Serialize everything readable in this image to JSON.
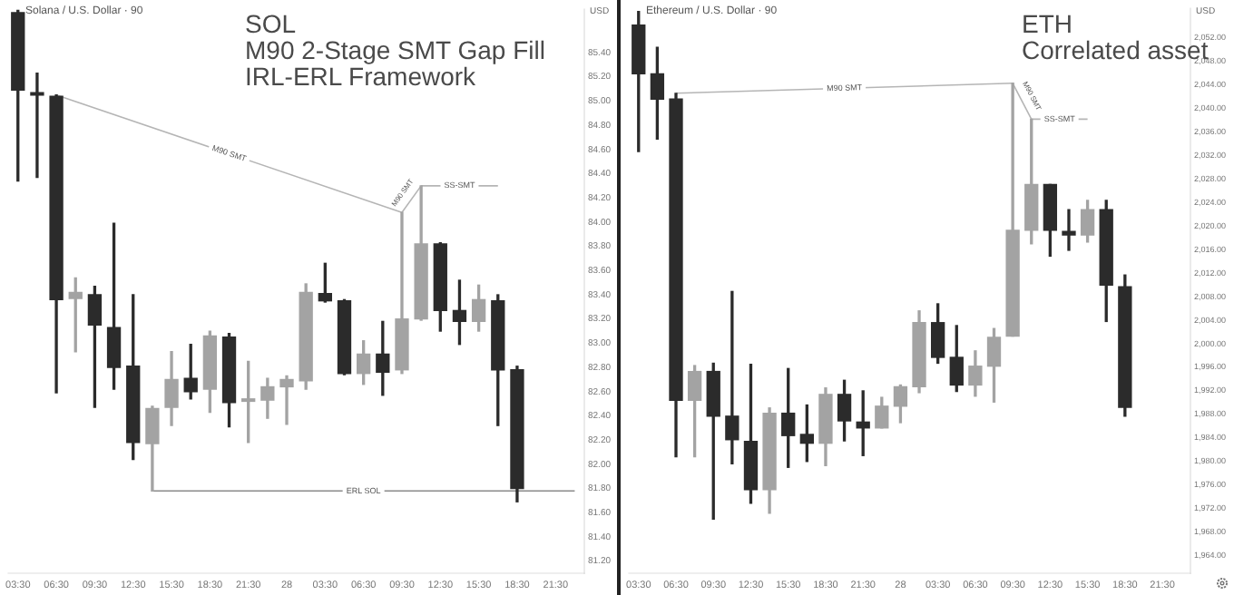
{
  "chart_data": [
    {
      "type": "candlestick",
      "title": "Solana / U.S. Dollar · 90",
      "ylabel": "USD",
      "annotations": [
        "SOL",
        "M90 2-Stage SMT Gap Fill",
        "IRL-ERL Framework"
      ],
      "categories": [
        "03:30",
        null,
        "06:30",
        null,
        "09:30",
        null,
        "12:30",
        null,
        "15:30",
        null,
        "18:30",
        null,
        "21:30",
        null,
        "28",
        null,
        "03:30",
        null,
        "06:30",
        null,
        "09:30",
        null,
        "12:30",
        null,
        "15:30",
        null,
        "18:30",
        null,
        "21:30",
        null
      ],
      "ohlc": [
        [
          85.73,
          85.75,
          84.34,
          85.09
        ],
        [
          85.07,
          85.23,
          84.37,
          85.05
        ],
        [
          85.04,
          85.05,
          82.59,
          83.36
        ],
        [
          83.37,
          83.54,
          82.93,
          83.42
        ],
        [
          83.4,
          83.47,
          82.47,
          83.15
        ],
        [
          83.13,
          83.99,
          82.62,
          82.8
        ],
        [
          82.81,
          83.4,
          82.04,
          82.18
        ],
        [
          82.17,
          82.48,
          81.78,
          82.46
        ],
        [
          82.47,
          82.93,
          82.32,
          82.7
        ],
        [
          82.71,
          82.99,
          82.54,
          82.6
        ],
        [
          82.62,
          83.1,
          82.43,
          83.06
        ],
        [
          83.05,
          83.08,
          82.31,
          82.51
        ],
        [
          82.52,
          82.85,
          82.18,
          82.54
        ],
        [
          82.53,
          82.71,
          82.38,
          82.64
        ],
        [
          82.64,
          82.73,
          82.33,
          82.7
        ],
        [
          82.69,
          83.49,
          82.62,
          83.42
        ],
        [
          83.41,
          83.66,
          83.34,
          83.35
        ],
        [
          83.35,
          83.36,
          82.74,
          82.75
        ],
        [
          82.75,
          83.02,
          82.66,
          82.91
        ],
        [
          82.91,
          83.18,
          82.57,
          82.76
        ],
        [
          82.78,
          84.08,
          82.75,
          83.2
        ],
        [
          83.2,
          84.3,
          83.19,
          83.82
        ],
        [
          83.82,
          83.83,
          83.1,
          83.27
        ],
        [
          83.27,
          83.52,
          82.99,
          83.18
        ],
        [
          83.18,
          83.48,
          83.1,
          83.36
        ],
        [
          83.35,
          83.4,
          82.32,
          82.78
        ],
        [
          82.78,
          82.81,
          81.69,
          81.8
        ],
        null,
        null,
        null
      ],
      "colors": [
        "#2b2b2b",
        "#2b2b2b",
        "#2b2b2b",
        "#a3a3a3",
        "#2b2b2b",
        "#2b2b2b",
        "#2b2b2b",
        "#a3a3a3",
        "#a3a3a3",
        "#2b2b2b",
        "#a3a3a3",
        "#2b2b2b",
        "#a3a3a3",
        "#a3a3a3",
        "#a3a3a3",
        "#a3a3a3",
        "#2b2b2b",
        "#2b2b2b",
        "#a3a3a3",
        "#2b2b2b",
        "#a3a3a3",
        "#a3a3a3",
        "#2b2b2b",
        "#2b2b2b",
        "#a3a3a3",
        "#2b2b2b",
        "#2b2b2b",
        null,
        null,
        null
      ],
      "series": [
        {
          "type": "line",
          "name": "M90 SMT",
          "color": "#b5b5b5",
          "values": [
            null,
            null,
            85.05,
            null,
            null,
            null,
            null,
            null,
            null,
            null,
            null,
            null,
            null,
            null,
            null,
            null,
            null,
            null,
            null,
            null,
            84.08,
            null,
            null,
            null,
            null,
            null,
            null,
            null,
            null,
            null
          ]
        },
        {
          "type": "line",
          "name": "M90 SMT",
          "color": "#b5b5b5",
          "values": [
            null,
            null,
            null,
            null,
            null,
            null,
            null,
            null,
            null,
            null,
            null,
            null,
            null,
            null,
            null,
            null,
            null,
            null,
            null,
            null,
            84.08,
            84.3,
            null,
            null,
            null,
            null,
            null,
            null,
            null,
            null
          ]
        },
        {
          "type": "line",
          "name": "SS-SMT",
          "color": "#b5b5b5",
          "values": [
            null,
            null,
            null,
            null,
            null,
            null,
            null,
            null,
            null,
            null,
            null,
            null,
            null,
            null,
            null,
            null,
            null,
            null,
            null,
            null,
            null,
            84.3,
            null,
            null,
            null,
            84.3,
            null,
            null,
            null,
            null
          ]
        },
        {
          "type": "line",
          "name": "ERL SOL",
          "color": "#8a8a8a",
          "values": [
            null,
            null,
            null,
            null,
            null,
            null,
            null,
            81.78,
            null,
            null,
            null,
            null,
            null,
            null,
            null,
            null,
            null,
            null,
            null,
            null,
            null,
            null,
            null,
            null,
            null,
            null,
            null,
            null,
            null,
            81.78
          ]
        }
      ],
      "ylim": [
        81.1,
        85.76
      ],
      "yticks": [
        {
          "value": 81.2,
          "label": "81.20"
        },
        {
          "value": 81.4,
          "label": "81.40"
        },
        {
          "value": 81.6,
          "label": "81.60"
        },
        {
          "value": 81.8,
          "label": "81.80"
        },
        {
          "value": 82,
          "label": "82.00"
        },
        {
          "value": 82.2,
          "label": "82.20"
        },
        {
          "value": 82.4,
          "label": "82.40"
        },
        {
          "value": 82.6,
          "label": "82.60"
        },
        {
          "value": 82.8,
          "label": "82.80"
        },
        {
          "value": 83,
          "label": "83.00"
        },
        {
          "value": 83.2,
          "label": "83.20"
        },
        {
          "value": 83.4,
          "label": "83.40"
        },
        {
          "value": 83.6,
          "label": "83.60"
        },
        {
          "value": 83.8,
          "label": "83.80"
        },
        {
          "value": 84,
          "label": "84.00"
        },
        {
          "value": 84.2,
          "label": "84.20"
        },
        {
          "value": 84.4,
          "label": "84.40"
        },
        {
          "value": 84.6,
          "label": "84.60"
        },
        {
          "value": 84.8,
          "label": "84.80"
        },
        {
          "value": 85,
          "label": "85.00"
        },
        {
          "value": 85.2,
          "label": "85.20"
        },
        {
          "value": 85.4,
          "label": "85.40"
        }
      ]
    },
    {
      "type": "candlestick",
      "title": "Ethereum / U.S. Dollar · 90",
      "ylabel": "USD",
      "annotations": [
        "ETH",
        "Correlated asset"
      ],
      "categories": [
        "03:30",
        null,
        "06:30",
        null,
        "09:30",
        null,
        "12:30",
        null,
        "15:30",
        null,
        "18:30",
        null,
        "21:30",
        null,
        "28",
        null,
        "03:30",
        null,
        "06:30",
        null,
        "09:30",
        null,
        "12:30",
        null,
        "15:30",
        null,
        "18:30",
        null,
        "21:30",
        null
      ],
      "ohlc": [
        [
          2054.2,
          2056.5,
          2032.7,
          2045.9
        ],
        [
          2045.9,
          2050.4,
          2034.8,
          2041.6
        ],
        [
          2041.6,
          2042.6,
          1980.8,
          1990.4
        ],
        [
          1990.4,
          1996.3,
          1980.8,
          1995.3
        ],
        [
          1995.3,
          1996.7,
          1970.2,
          1987.7
        ],
        [
          1987.7,
          2008.9,
          1979.6,
          1983.7
        ],
        [
          1983.4,
          1996.5,
          1972.9,
          1975.2
        ],
        [
          1975.2,
          1989.1,
          1971.2,
          1988.2
        ],
        [
          1988.2,
          1995.8,
          1979.0,
          1984.4
        ],
        [
          1984.6,
          1989.6,
          1980.0,
          1983.1
        ],
        [
          1983.1,
          1992.5,
          1979.3,
          1991.4
        ],
        [
          1991.4,
          1993.8,
          1983.5,
          1986.9
        ],
        [
          1986.7,
          1992.0,
          1981.0,
          1985.7
        ],
        [
          1985.7,
          1990.9,
          1985.7,
          1989.4
        ],
        [
          1989.4,
          1993.0,
          1986.6,
          1992.7
        ],
        [
          1992.7,
          2005.6,
          1991.7,
          2003.6
        ],
        [
          2003.6,
          2006.8,
          1996.7,
          1997.7
        ],
        [
          1997.7,
          2003.1,
          1991.9,
          1993.0
        ],
        [
          1993.0,
          1998.8,
          1991.1,
          1996.2
        ],
        [
          1996.2,
          2002.6,
          1990.1,
          2001.1
        ],
        [
          2001.3,
          2044.3,
          2001.3,
          2019.3
        ],
        [
          2019.3,
          2038.2,
          2017.0,
          2027.1
        ],
        [
          2027.1,
          2027.1,
          2014.9,
          2019.3
        ],
        [
          2019.1,
          2022.8,
          2015.9,
          2018.5
        ],
        [
          2018.5,
          2024.4,
          2017.3,
          2022.8
        ],
        [
          2022.8,
          2024.4,
          2003.8,
          2010.0
        ],
        [
          2009.7,
          2011.7,
          1987.7,
          1989.2
        ],
        null,
        null,
        null
      ],
      "colors": [
        "#2b2b2b",
        "#2b2b2b",
        "#2b2b2b",
        "#a3a3a3",
        "#2b2b2b",
        "#2b2b2b",
        "#2b2b2b",
        "#a3a3a3",
        "#2b2b2b",
        "#2b2b2b",
        "#a3a3a3",
        "#2b2b2b",
        "#2b2b2b",
        "#a3a3a3",
        "#a3a3a3",
        "#a3a3a3",
        "#2b2b2b",
        "#2b2b2b",
        "#a3a3a3",
        "#a3a3a3",
        "#a3a3a3",
        "#a3a3a3",
        "#2b2b2b",
        "#2b2b2b",
        "#a3a3a3",
        "#2b2b2b",
        "#2b2b2b",
        null,
        null,
        null
      ],
      "series": [
        {
          "type": "line",
          "name": "M90 SMT",
          "color": "#b5b5b5",
          "values": [
            null,
            null,
            2042.6,
            null,
            null,
            null,
            null,
            null,
            null,
            null,
            null,
            null,
            null,
            null,
            null,
            null,
            null,
            null,
            null,
            null,
            2044.3,
            null,
            null,
            null,
            null,
            null,
            null,
            null,
            null,
            null
          ]
        },
        {
          "type": "line",
          "name": "M90 SMT",
          "color": "#b5b5b5",
          "values": [
            null,
            null,
            null,
            null,
            null,
            null,
            null,
            null,
            null,
            null,
            null,
            null,
            null,
            null,
            null,
            null,
            null,
            null,
            null,
            null,
            2044.3,
            2038.2,
            null,
            null,
            null,
            null,
            null,
            null,
            null,
            null
          ]
        },
        {
          "type": "line",
          "name": "SS-SMT",
          "color": "#b5b5b5",
          "values": [
            null,
            null,
            null,
            null,
            null,
            null,
            null,
            null,
            null,
            null,
            null,
            null,
            null,
            null,
            null,
            null,
            null,
            null,
            null,
            null,
            null,
            2038.2,
            null,
            null,
            2038.2,
            null,
            null,
            null,
            null,
            null
          ]
        }
      ],
      "ylim": [
        1961,
        2057
      ],
      "yticks": [
        {
          "value": 1964,
          "label": "1,964.00"
        },
        {
          "value": 1968,
          "label": "1,968.00"
        },
        {
          "value": 1972,
          "label": "1,972.00"
        },
        {
          "value": 1976,
          "label": "1,976.00"
        },
        {
          "value": 1980,
          "label": "1,980.00"
        },
        {
          "value": 1984,
          "label": "1,984.00"
        },
        {
          "value": 1988,
          "label": "1,988.00"
        },
        {
          "value": 1992,
          "label": "1,992.00"
        },
        {
          "value": 1996,
          "label": "1,996.00"
        },
        {
          "value": 2000,
          "label": "2,000.00"
        },
        {
          "value": 2004,
          "label": "2,004.00"
        },
        {
          "value": 2008,
          "label": "2,008.00"
        },
        {
          "value": 2012,
          "label": "2,012.00"
        },
        {
          "value": 2016,
          "label": "2,016.00"
        },
        {
          "value": 2020,
          "label": "2,020.00"
        },
        {
          "value": 2024,
          "label": "2,024.00"
        },
        {
          "value": 2028,
          "label": "2,028.00"
        },
        {
          "value": 2032,
          "label": "2,032.00"
        },
        {
          "value": 2036,
          "label": "2,036.00"
        },
        {
          "value": 2040,
          "label": "2,040.00"
        },
        {
          "value": 2044,
          "label": "2,044.00"
        },
        {
          "value": 2048,
          "label": "2,048.00"
        },
        {
          "value": 2052,
          "label": "2,052.00"
        }
      ]
    }
  ]
}
